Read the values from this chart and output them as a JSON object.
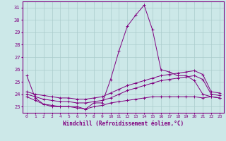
{
  "xlabel": "Windchill (Refroidissement éolien,°C)",
  "background_color": "#cce8e8",
  "grid_color": "#aacccc",
  "line_color": "#800080",
  "xlim": [
    -0.5,
    23.5
  ],
  "ylim": [
    22.5,
    31.5
  ],
  "yticks": [
    23,
    24,
    25,
    26,
    27,
    28,
    29,
    30,
    31
  ],
  "xticks": [
    0,
    1,
    2,
    3,
    4,
    5,
    6,
    7,
    8,
    9,
    10,
    11,
    12,
    13,
    14,
    15,
    16,
    17,
    18,
    19,
    20,
    21,
    22,
    23
  ],
  "line1": [
    25.5,
    23.7,
    23.2,
    23.0,
    23.0,
    23.0,
    23.0,
    22.8,
    23.3,
    23.3,
    25.2,
    27.5,
    29.5,
    30.4,
    31.2,
    29.2,
    26.0,
    25.8,
    25.5,
    25.5,
    25.1,
    24.0,
    23.8,
    23.7
  ],
  "line2": [
    23.8,
    23.5,
    23.2,
    23.1,
    23.0,
    23.0,
    22.9,
    22.8,
    23.0,
    23.1,
    23.3,
    23.4,
    23.5,
    23.6,
    23.7,
    23.8,
    23.8,
    23.8,
    23.8,
    23.8,
    23.8,
    23.7,
    23.8,
    23.7
  ],
  "line3": [
    24.0,
    23.8,
    23.6,
    23.5,
    23.4,
    23.4,
    23.3,
    23.3,
    23.4,
    23.5,
    23.7,
    24.0,
    24.3,
    24.5,
    24.7,
    24.9,
    25.1,
    25.2,
    25.3,
    25.4,
    25.5,
    25.2,
    24.0,
    23.9
  ],
  "line4": [
    24.2,
    24.0,
    23.9,
    23.8,
    23.7,
    23.7,
    23.6,
    23.6,
    23.7,
    23.8,
    24.1,
    24.4,
    24.7,
    24.9,
    25.1,
    25.3,
    25.5,
    25.6,
    25.7,
    25.8,
    25.9,
    25.6,
    24.2,
    24.1
  ]
}
